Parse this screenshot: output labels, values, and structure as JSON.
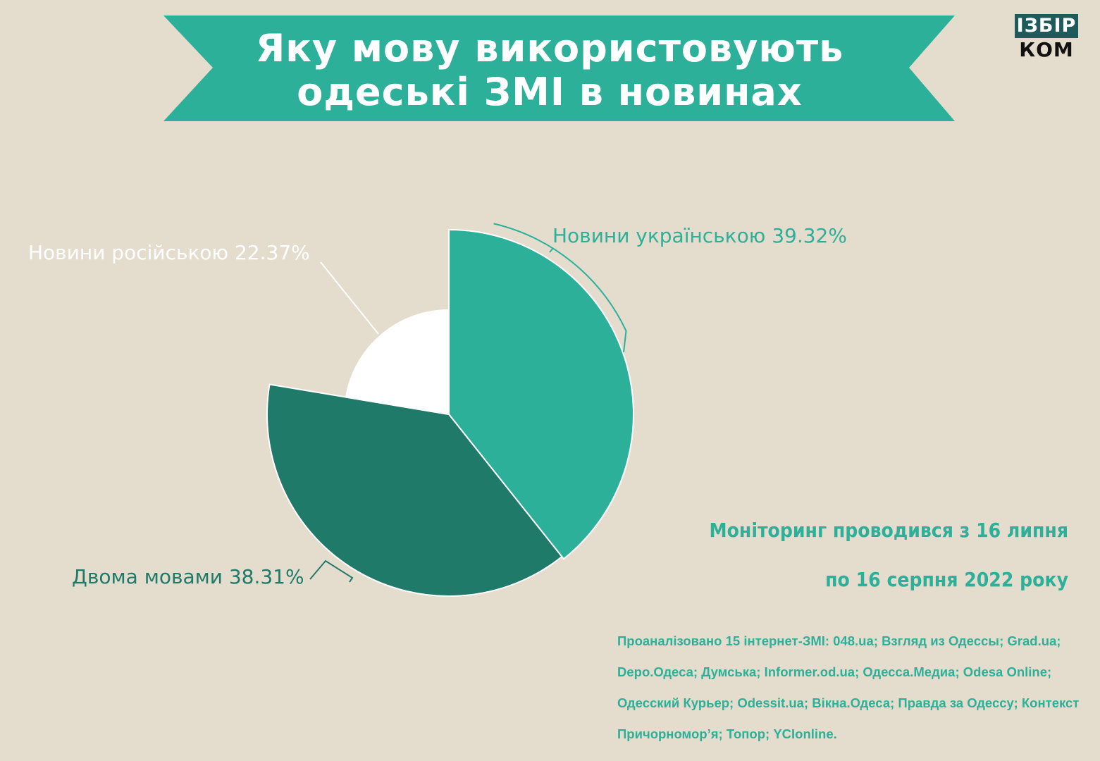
{
  "title": {
    "line1": "Яку мову використовують",
    "line2": "одеські ЗМІ в новинах"
  },
  "logo": {
    "top": "ІЗБІР",
    "bottom": "КОМ"
  },
  "colors": {
    "background": "#e4dccd",
    "banner": "#2db09a",
    "ukrainian": "#2db09a",
    "both": "#1f7a6a",
    "russian": "#ffffff",
    "logo_box": "#1f5b5b"
  },
  "chart_data": {
    "type": "pie",
    "title": "Яку мову використовують одеські ЗМІ в новинах",
    "slices": [
      {
        "label": "Новини українською",
        "value": 39.32,
        "display": "Новини українською 39.32%",
        "color": "#2db09a"
      },
      {
        "label": "Двома мовами",
        "value": 38.31,
        "display": "Двома мовами 38.31%",
        "color": "#1f7a6a"
      },
      {
        "label": "Новини російською",
        "value": 22.37,
        "display": "Новини російською 22.37%",
        "color": "#ffffff"
      }
    ]
  },
  "monitoring": {
    "line1": "Моніторинг проводився з 16 липня",
    "line2": "по 16 серпня 2022 року"
  },
  "sources": {
    "line1": "Проаналізовано 15 інтернет-ЗМІ: 048.ua; Взгляд из Одессы; Grad.ua;",
    "line2": "Depo.Одеса; Думська; Informer.od.ua; Одесса.Медиа; Odesa Online;",
    "line3": "Одесский Курьер; Odessit.ua; Вікна.Одеса; Правда за Одессу; Контекст",
    "line4": "Причорномор’я; Топор; YCIonline."
  }
}
